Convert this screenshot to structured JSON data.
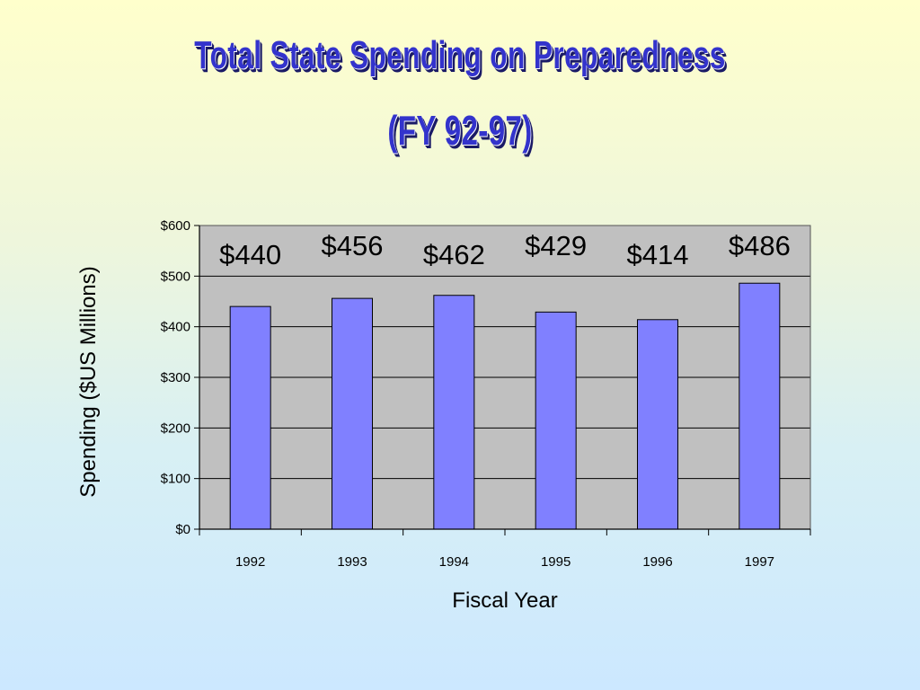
{
  "title_line1": "Total State Spending on Preparedness",
  "title_line2": "(FY 92-97)",
  "colors": {
    "title_fill": "#3333cc",
    "bar_fill": "#8080ff",
    "plot_background": "#c0c0c0"
  },
  "chart_data": {
    "type": "bar",
    "title": "Total State Spending on Preparedness (FY 92-97)",
    "xlabel": "Fiscal Year",
    "ylabel": "Spending ($US Millions)",
    "categories": [
      "1992",
      "1993",
      "1994",
      "1995",
      "1996",
      "1997"
    ],
    "values": [
      440,
      456,
      462,
      429,
      414,
      486
    ],
    "data_labels": [
      "$440",
      "$456",
      "$462",
      "$429",
      "$414",
      "$486"
    ],
    "ylim": [
      0,
      600
    ],
    "yticks": [
      0,
      100,
      200,
      300,
      400,
      500,
      600
    ],
    "ytick_labels": [
      "$0",
      "$100",
      "$200",
      "$300",
      "$400",
      "$500",
      "$600"
    ],
    "grid": true,
    "legend": "none"
  }
}
